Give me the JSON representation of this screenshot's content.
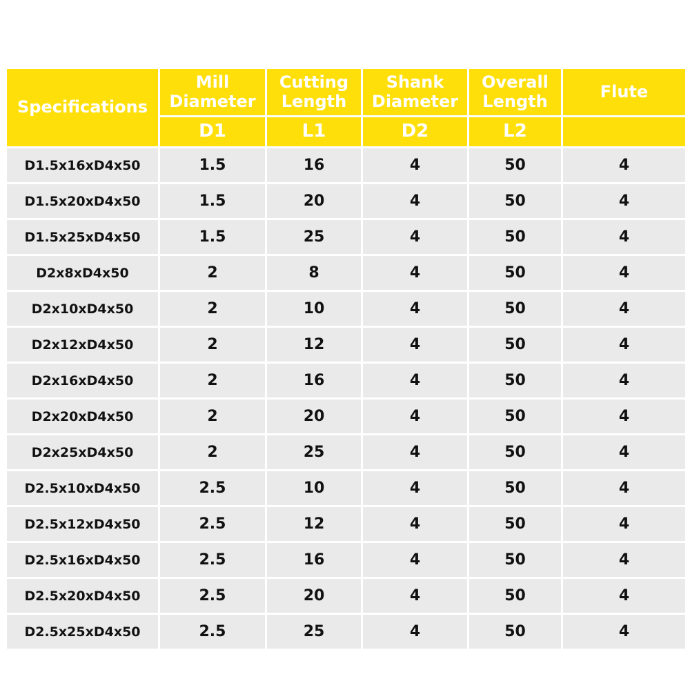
{
  "table": {
    "headers": {
      "specifications": "Specifications",
      "mill_diameter": [
        "Mill",
        "Diameter"
      ],
      "cutting_length": [
        "Cutting",
        "Length"
      ],
      "shank_diameter": [
        "Shank",
        "Diameter"
      ],
      "overall_length": [
        "Overall",
        "Length"
      ],
      "flute": "Flute"
    },
    "subheaders": {
      "mill_diameter": "D1",
      "cutting_length": "L1",
      "shank_diameter": "D2",
      "overall_length": "L2",
      "flute": ""
    },
    "rows": [
      [
        "D1.5x16xD4x50",
        "1.5",
        "16",
        "4",
        "50",
        "4"
      ],
      [
        "D1.5x20xD4x50",
        "1.5",
        "20",
        "4",
        "50",
        "4"
      ],
      [
        "D1.5x25xD4x50",
        "1.5",
        "25",
        "4",
        "50",
        "4"
      ],
      [
        "D2x8xD4x50",
        "2",
        "8",
        "4",
        "50",
        "4"
      ],
      [
        "D2x10xD4x50",
        "2",
        "10",
        "4",
        "50",
        "4"
      ],
      [
        "D2x12xD4x50",
        "2",
        "12",
        "4",
        "50",
        "4"
      ],
      [
        "D2x16xD4x50",
        "2",
        "16",
        "4",
        "50",
        "4"
      ],
      [
        "D2x20xD4x50",
        "2",
        "20",
        "4",
        "50",
        "4"
      ],
      [
        "D2x25xD4x50",
        "2",
        "25",
        "4",
        "50",
        "4"
      ],
      [
        "D2.5x10xD4x50",
        "2.5",
        "10",
        "4",
        "50",
        "4"
      ],
      [
        "D2.5x12xD4x50",
        "2.5",
        "12",
        "4",
        "50",
        "4"
      ],
      [
        "D2.5x16xD4x50",
        "2.5",
        "16",
        "4",
        "50",
        "4"
      ],
      [
        "D2.5x20xD4x50",
        "2.5",
        "20",
        "4",
        "50",
        "4"
      ],
      [
        "D2.5x25xD4x50",
        "2.5",
        "25",
        "4",
        "50",
        "4"
      ]
    ]
  },
  "colors": {
    "header_bg": "#ffdf0a",
    "header_text": "#ffffff",
    "row_bg": "#eaeaea",
    "row_text": "#111111"
  }
}
